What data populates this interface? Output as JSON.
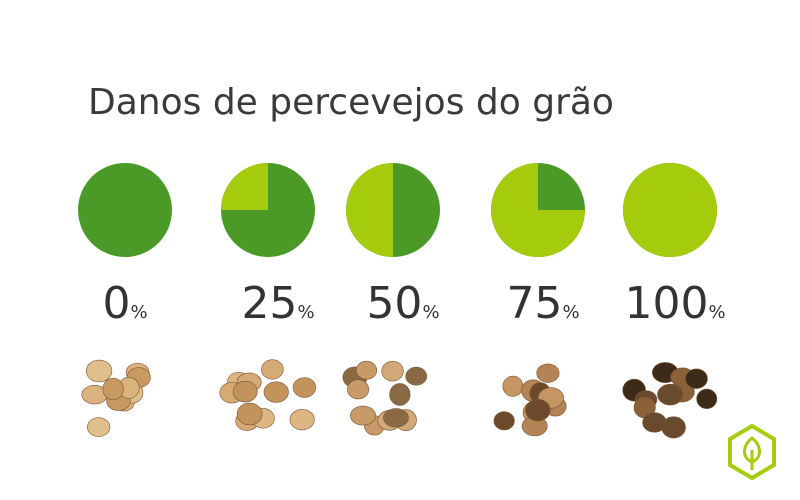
{
  "title": "Danos de percevejos do grão",
  "unit": "%",
  "damage": {
    "values": [
      0,
      25,
      50,
      75,
      100
    ],
    "damaged_color": "#a5cc0c",
    "healthy_color": "#4b9a27"
  }
}
